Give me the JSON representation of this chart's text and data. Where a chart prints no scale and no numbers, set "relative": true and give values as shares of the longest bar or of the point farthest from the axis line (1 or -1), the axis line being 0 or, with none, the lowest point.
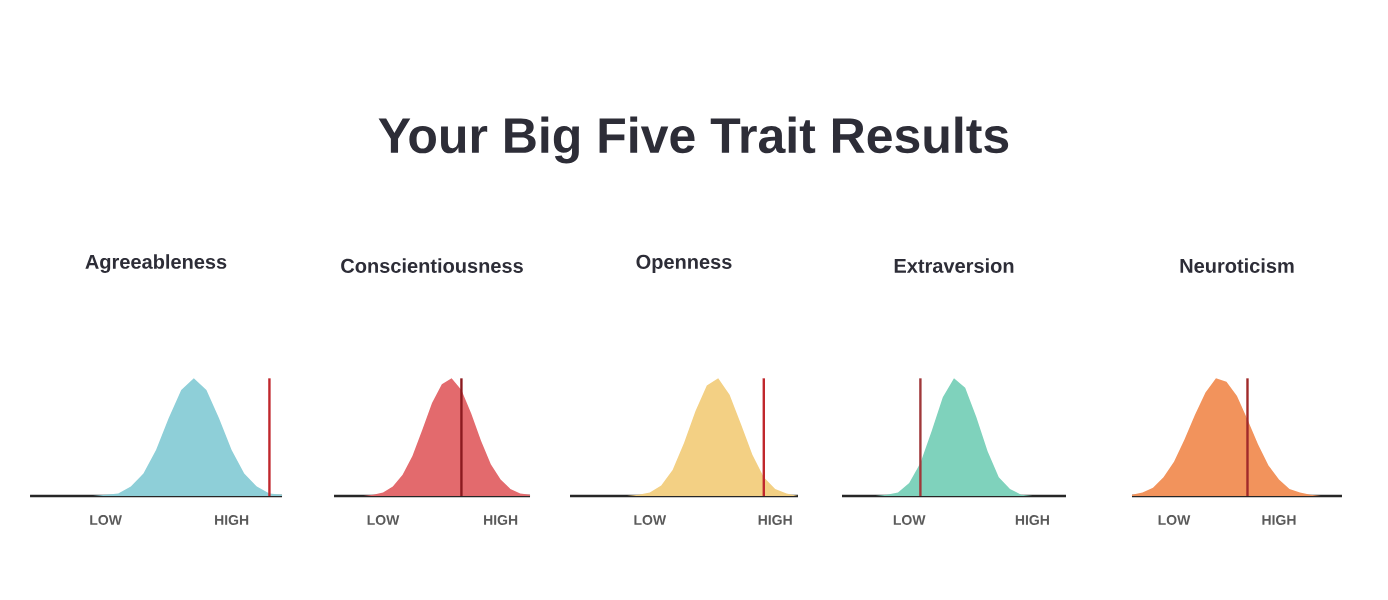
{
  "chart_data": [
    {
      "type": "other",
      "title": "Your Big Five Trait Results"
    },
    {
      "type": "area",
      "title": "Agreeableness",
      "relative": true,
      "categories": [
        null,
        null,
        null,
        null,
        null,
        null,
        "LOW",
        null,
        null,
        null,
        null,
        null,
        null,
        null,
        null,
        null,
        "HIGH",
        null,
        null,
        null,
        null
      ],
      "series": [
        {
          "type": "area",
          "color": "#8ecfd8",
          "values": [
            0,
            0,
            0,
            0,
            0,
            0,
            0.01,
            0.02,
            0.08,
            0.19,
            0.39,
            0.66,
            0.9,
            1,
            0.9,
            0.66,
            0.39,
            0.19,
            0.08,
            0.02,
            0.01
          ]
        },
        {
          "type": "bar",
          "color": "#c0272d",
          "values": [
            null,
            null,
            null,
            null,
            null,
            null,
            null,
            null,
            null,
            null,
            null,
            null,
            null,
            null,
            null,
            null,
            null,
            null,
            null,
            1,
            null
          ]
        }
      ]
    },
    {
      "type": "area",
      "title": "Conscientiousness",
      "relative": true,
      "categories": [
        null,
        null,
        null,
        null,
        null,
        "LOW",
        null,
        null,
        null,
        null,
        null,
        null,
        null,
        null,
        null,
        null,
        null,
        "HIGH",
        null,
        null,
        null
      ],
      "series": [
        {
          "type": "area",
          "color": "#e36a6d",
          "values": [
            0,
            0,
            0,
            0,
            0.01,
            0.03,
            0.08,
            0.18,
            0.34,
            0.56,
            0.79,
            0.95,
            1,
            0.9,
            0.7,
            0.47,
            0.27,
            0.14,
            0.06,
            0.02,
            0.01
          ]
        },
        {
          "type": "bar",
          "color": "#8b1a1f",
          "values": [
            null,
            null,
            null,
            null,
            null,
            null,
            null,
            null,
            null,
            null,
            null,
            null,
            null,
            1,
            null,
            null,
            null,
            null,
            null,
            null,
            null
          ]
        }
      ]
    },
    {
      "type": "area",
      "title": "Openness",
      "relative": true,
      "categories": [
        null,
        null,
        null,
        null,
        null,
        null,
        null,
        "LOW",
        null,
        null,
        null,
        null,
        null,
        null,
        null,
        null,
        null,
        null,
        "HIGH",
        null,
        null
      ],
      "series": [
        {
          "type": "area",
          "color": "#f3d084",
          "values": [
            0,
            0,
            0,
            0,
            0,
            0,
            0.01,
            0.03,
            0.09,
            0.22,
            0.45,
            0.72,
            0.94,
            1,
            0.86,
            0.61,
            0.35,
            0.16,
            0.06,
            0.02,
            0
          ]
        },
        {
          "type": "bar",
          "color": "#c0272d",
          "values": [
            null,
            null,
            null,
            null,
            null,
            null,
            null,
            null,
            null,
            null,
            null,
            null,
            null,
            null,
            null,
            null,
            null,
            1,
            null,
            null,
            null
          ]
        }
      ]
    },
    {
      "type": "area",
      "title": "Extraversion",
      "relative": true,
      "categories": [
        null,
        null,
        null,
        null,
        null,
        null,
        "LOW",
        null,
        null,
        null,
        null,
        null,
        null,
        null,
        null,
        null,
        null,
        "HIGH",
        null,
        null,
        null
      ],
      "series": [
        {
          "type": "area",
          "color": "#7fd2bc",
          "values": [
            0,
            0,
            0,
            0,
            0.01,
            0.03,
            0.11,
            0.28,
            0.55,
            0.84,
            1,
            0.92,
            0.67,
            0.38,
            0.16,
            0.06,
            0.01,
            0,
            0,
            0,
            0
          ]
        },
        {
          "type": "bar",
          "color": "#a0383a",
          "values": [
            null,
            null,
            null,
            null,
            null,
            null,
            null,
            1,
            null,
            null,
            null,
            null,
            null,
            null,
            null,
            null,
            null,
            null,
            null,
            null,
            null
          ]
        }
      ]
    },
    {
      "type": "area",
      "title": "Neuroticism",
      "relative": true,
      "categories": [
        null,
        null,
        null,
        null,
        "LOW",
        null,
        null,
        null,
        null,
        null,
        null,
        null,
        null,
        null,
        "HIGH",
        null,
        null,
        null,
        null,
        null,
        null
      ],
      "series": [
        {
          "type": "area",
          "color": "#f2935c",
          "values": [
            0.01,
            0.03,
            0.07,
            0.16,
            0.29,
            0.48,
            0.69,
            0.88,
            1,
            0.97,
            0.85,
            0.65,
            0.44,
            0.26,
            0.14,
            0.06,
            0.03,
            0.01,
            0,
            0,
            0
          ]
        },
        {
          "type": "bar",
          "color": "#a02a2a",
          "values": [
            null,
            null,
            null,
            null,
            null,
            null,
            null,
            null,
            null,
            null,
            null,
            1,
            null,
            null,
            null,
            null,
            null,
            null,
            null,
            null,
            null
          ]
        }
      ]
    }
  ]
}
